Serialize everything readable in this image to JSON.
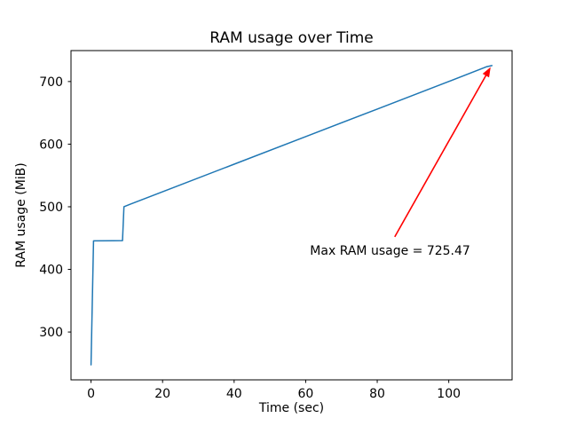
{
  "figure": {
    "background": "#ffffff",
    "frame_color": "#000000"
  },
  "chart_data": {
    "type": "line",
    "title": "RAM usage over Time",
    "xlabel": "Time (sec)",
    "ylabel": "RAM usage (MiB)",
    "xlim": [
      -5.6,
      117.7
    ],
    "ylim": [
      223.6,
      749.4
    ],
    "xticks": [
      0,
      20,
      40,
      60,
      80,
      100
    ],
    "yticks": [
      300,
      400,
      500,
      600,
      700
    ],
    "grid": false,
    "legend": null,
    "series": [
      {
        "name": "RAM usage",
        "color": "#1f77b4",
        "line_width": 1.5,
        "x": [
          0,
          0.7,
          8.8,
          9.2,
          10.9,
          20,
          40,
          60,
          80,
          100,
          110.5,
          112.06
        ],
        "y": [
          247.5,
          445.5,
          446,
          500,
          504,
          524,
          568,
          612,
          656,
          700,
          723.5,
          725.47
        ]
      }
    ],
    "max_value": 725.47,
    "annotation": {
      "text": "Max RAM usage = 725.47",
      "color": "#ff0000",
      "arrow_tip_xy": [
        111.7,
        723.0
      ],
      "arrow_tail_xy": [
        84.9,
        452.0
      ],
      "text_anchor_xy": [
        61.2,
        423.5
      ]
    }
  }
}
